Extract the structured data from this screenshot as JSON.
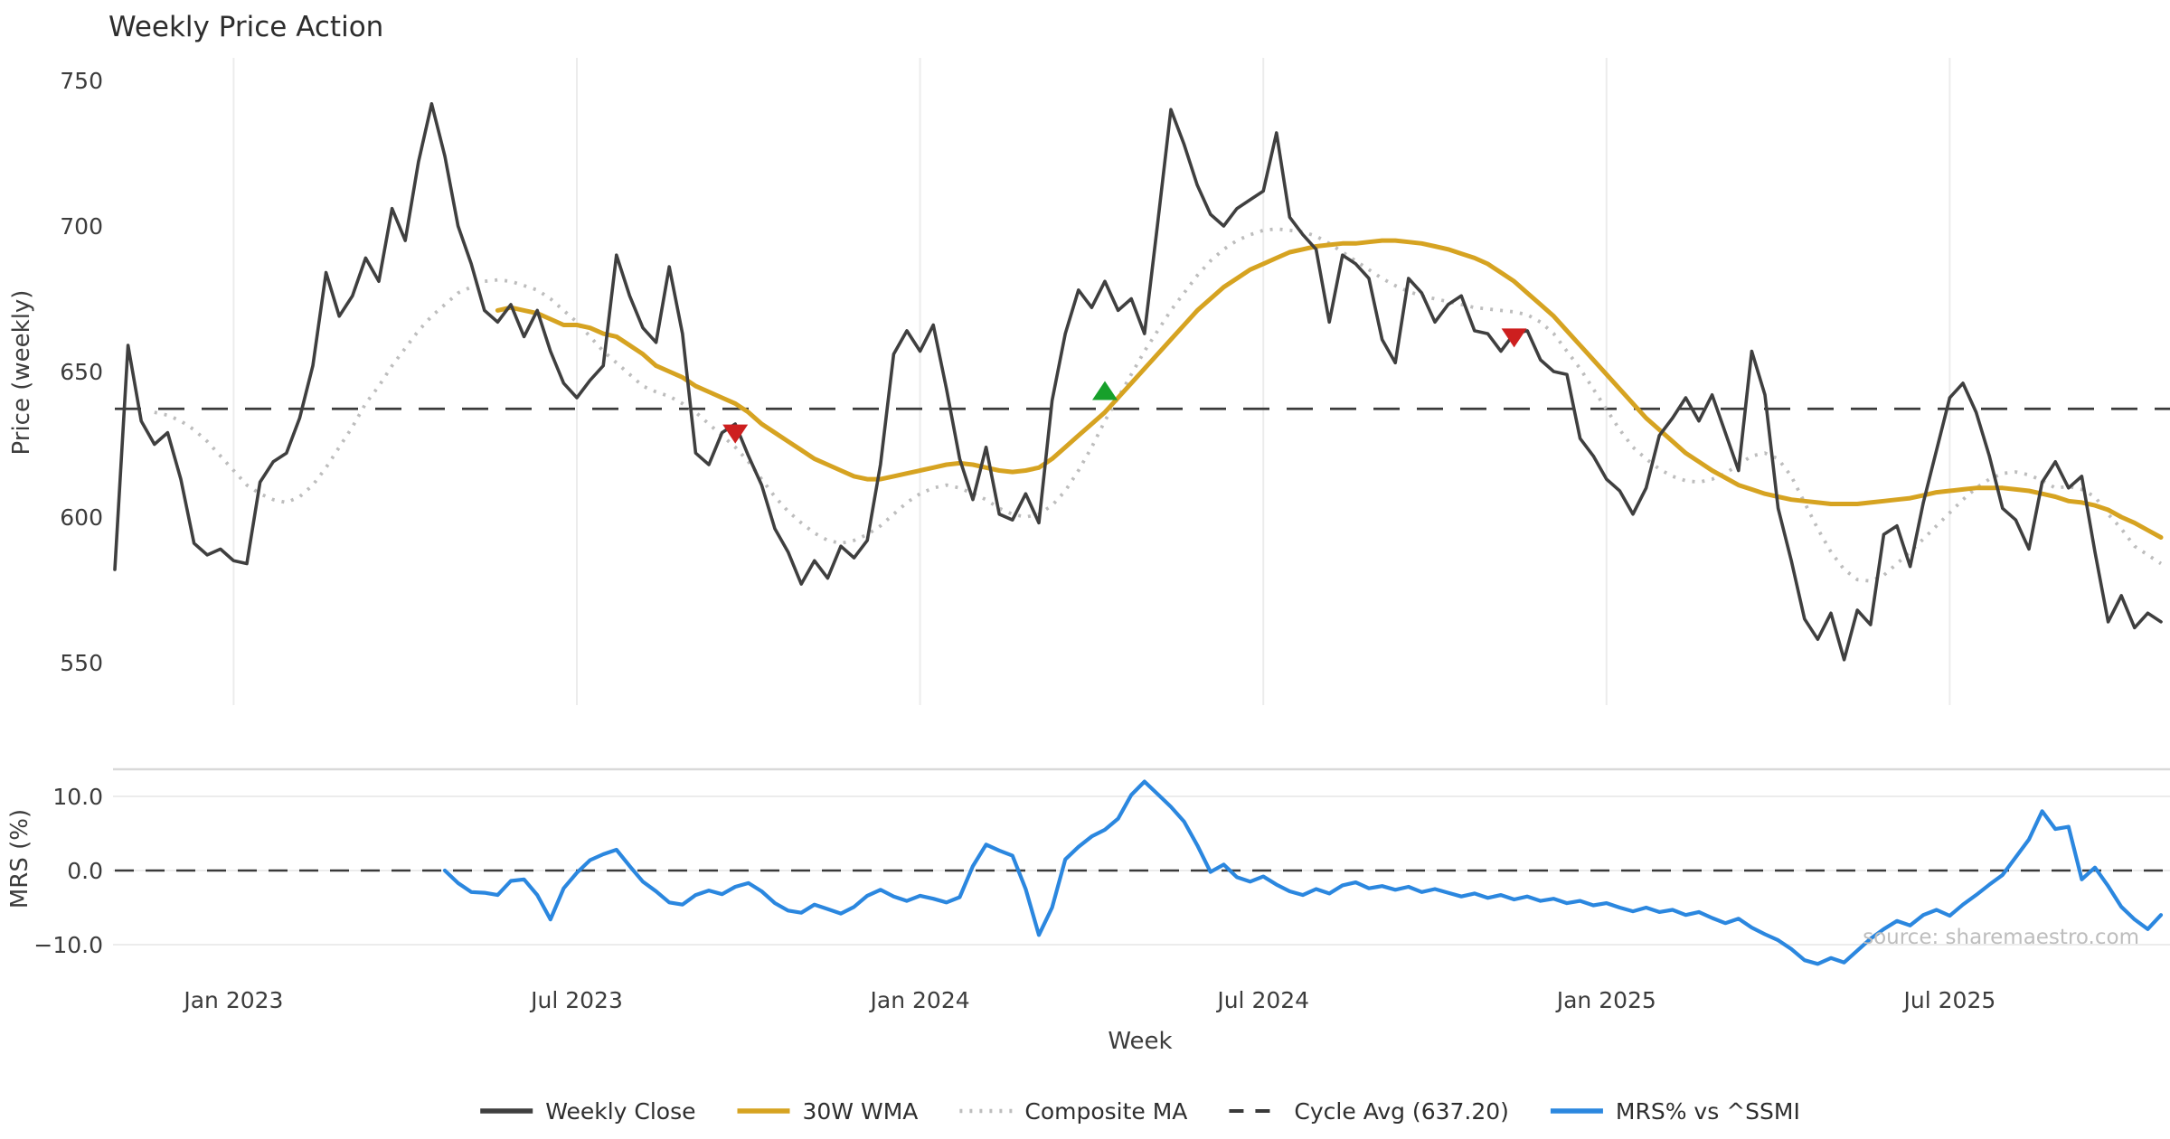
{
  "title": "Weekly Price Action",
  "source_note": "source: sharemaestro.com",
  "colors": {
    "close": "#3f3f3f",
    "wma": "#d6a321",
    "composite": "#bdbdbd",
    "cycle": "#3a3a3a",
    "mrs": "#2b87df",
    "buy": "#17a02b",
    "sell": "#cd1f1f",
    "grid": "#ececec",
    "spine": "#d9d9d9",
    "text": "#3c3c3c",
    "source_text": "#bdbdbd"
  },
  "legend": {
    "items": [
      {
        "label": "Weekly Close",
        "style": "solid",
        "color": "#3f3f3f"
      },
      {
        "label": "30W WMA",
        "style": "solid",
        "color": "#d6a321"
      },
      {
        "label": "Composite MA",
        "style": "dotted",
        "color": "#bdbdbd"
      },
      {
        "label": "Cycle Avg (637.20)",
        "style": "dashed",
        "color": "#3a3a3a"
      },
      {
        "label": "MRS% vs ^SSMI",
        "style": "solid",
        "color": "#2b87df"
      }
    ]
  },
  "chart_data": {
    "type": "line",
    "title": "Weekly Price Action",
    "xlabel": "Week",
    "x": {
      "n_weeks": 156,
      "tick_weeks": [
        9,
        35,
        61,
        87,
        113,
        139
      ],
      "tick_labels": [
        "Jan 2023",
        "Jul 2023",
        "Jan 2024",
        "Jul 2024",
        "Jan 2025",
        "Jul 2025"
      ]
    },
    "panels": [
      {
        "name": "price",
        "ylabel": "Price (weekly)",
        "ylim": [
          541,
          755
        ],
        "yticks": [
          750,
          700,
          650,
          600,
          550
        ],
        "ytick_labels": [
          "750",
          "700",
          "650",
          "600",
          "550"
        ],
        "cycle_avg": 637.2,
        "series": [
          {
            "name": "Weekly Close",
            "values": [
              582,
              659,
              633,
              625,
              629,
              613,
              591,
              587,
              589,
              585,
              584,
              612,
              619,
              622,
              634,
              652,
              684,
              669,
              676,
              689,
              681,
              706,
              695,
              722,
              742,
              724,
              700,
              687,
              671,
              667,
              673,
              662,
              671,
              657,
              646,
              641,
              647,
              652,
              690,
              676,
              665,
              660,
              686,
              663,
              622,
              618,
              629,
              632,
              621,
              611,
              596,
              588,
              577,
              585,
              579,
              590,
              586,
              592,
              618,
              656,
              664,
              657,
              666,
              644,
              620,
              606,
              624,
              601,
              599,
              608,
              598,
              640,
              663,
              678,
              672,
              681,
              671,
              675,
              663,
              701,
              740,
              728,
              714,
              704,
              700,
              706,
              709,
              712,
              732,
              703,
              697,
              692,
              667,
              690,
              687,
              682,
              661,
              653,
              682,
              677,
              667,
              673,
              676,
              664,
              663,
              657,
              663,
              664,
              654,
              650,
              649,
              627,
              621,
              613,
              609,
              601,
              610,
              628,
              634,
              641,
              633,
              642,
              629,
              616,
              657,
              642,
              603,
              585,
              565,
              558,
              567,
              551,
              568,
              563,
              594,
              597,
              583,
              605,
              623,
              641,
              646,
              636,
              621,
              603,
              599,
              589,
              612,
              619,
              610,
              614,
              588,
              564,
              573,
              562,
              567,
              564
            ]
          },
          {
            "name": "30W WMA",
            "values": [
              null,
              null,
              null,
              null,
              null,
              null,
              null,
              null,
              null,
              null,
              null,
              null,
              null,
              null,
              null,
              null,
              null,
              null,
              null,
              null,
              null,
              null,
              null,
              null,
              null,
              null,
              null,
              null,
              null,
              671,
              672,
              671,
              670,
              668,
              666,
              666,
              665,
              663,
              662,
              659,
              656,
              652,
              650,
              648,
              645,
              643,
              641,
              639,
              636,
              632,
              629,
              626,
              623,
              620,
              618,
              616,
              614,
              613,
              613,
              614,
              615,
              616,
              617,
              618,
              618.5,
              618,
              617,
              616,
              615.5,
              616,
              617,
              620,
              624,
              628,
              632,
              636,
              641,
              646,
              651,
              656,
              661,
              666,
              671,
              675,
              679,
              682,
              685,
              687,
              689,
              691,
              692,
              693,
              693.5,
              694,
              694,
              694.5,
              695,
              695,
              694.5,
              694,
              693,
              692,
              690.5,
              689,
              687,
              684,
              681,
              677,
              673,
              669,
              664,
              659,
              654,
              649,
              644,
              639,
              634,
              630,
              626,
              622,
              619,
              616,
              613.5,
              611,
              609.5,
              608,
              607,
              606,
              605.5,
              605,
              604.5,
              604.5,
              604.5,
              605,
              605.5,
              606,
              606.5,
              607.5,
              608.5,
              609,
              609.5,
              610,
              610,
              610,
              609.5,
              609,
              608,
              607,
              605.5,
              605,
              604,
              602.5,
              600,
              598,
              595.5,
              593
            ]
          },
          {
            "name": "Composite MA",
            "values": [
              null,
              null,
              null,
              636,
              635,
              633,
              630,
              626,
              621,
              616,
              611,
              608,
              606,
              605,
              607,
              611,
              617,
              624,
              631,
              639,
              645,
              652,
              658,
              664,
              669,
              673,
              677,
              679,
              681,
              681.5,
              681,
              679.5,
              678,
              675,
              671,
              667,
              662,
              657,
              653,
              649,
              645,
              643,
              641.5,
              639,
              636,
              632,
              628,
              624,
              619,
              613,
              607,
              602,
              598,
              594.5,
              592,
              591,
              592,
              594,
              597,
              601,
              605,
              608,
              610,
              611,
              610,
              608,
              606,
              603,
              601,
              600,
              601,
              604,
              609,
              616,
              624,
              633,
              641,
              649,
              657,
              664,
              671,
              677,
              683,
              688,
              692,
              695,
              697,
              698.5,
              699,
              698.5,
              698,
              696.5,
              694,
              691,
              688,
              685,
              682,
              679.5,
              677.5,
              676,
              675,
              674,
              673,
              672,
              671.5,
              671,
              670.5,
              669.5,
              667,
              663,
              657,
              651,
              644,
              637,
              630,
              624,
              620,
              616.5,
              614,
              612.5,
              612,
              613,
              615,
              618,
              621,
              622,
              620,
              614,
              605,
              596,
              588,
              582,
              578.5,
              578,
              580,
              584,
              588,
              592.5,
              597,
              601.5,
              606,
              610,
              613,
              615,
              615.5,
              614.5,
              612.5,
              610,
              610.5,
              609.5,
              607,
              601,
              596,
              590,
              587,
              584
            ]
          }
        ],
        "markers": [
          {
            "week": 47,
            "price": 629,
            "type": "sell"
          },
          {
            "week": 75,
            "price": 643,
            "type": "buy"
          },
          {
            "week": 106,
            "price": 662,
            "type": "sell"
          }
        ]
      },
      {
        "name": "mrs",
        "ylabel": "MRS (%)",
        "ylim": [
          -14,
          13.5
        ],
        "yticks": [
          10,
          0,
          -10
        ],
        "ytick_labels": [
          "10.0",
          "0.0",
          "−10.0"
        ],
        "zero_line": 0,
        "series": [
          {
            "name": "MRS% vs ^SSMI",
            "values": [
              null,
              null,
              null,
              null,
              null,
              null,
              null,
              null,
              null,
              null,
              null,
              null,
              null,
              null,
              null,
              null,
              null,
              null,
              null,
              null,
              null,
              null,
              null,
              null,
              null,
              0.0,
              -1.7,
              -2.9,
              -3.0,
              -3.3,
              -1.4,
              -1.2,
              -3.3,
              -6.6,
              -2.4,
              -0.3,
              1.4,
              2.2,
              2.8,
              0.6,
              -1.5,
              -2.8,
              -4.3,
              -4.6,
              -3.3,
              -2.7,
              -3.2,
              -2.2,
              -1.7,
              -2.8,
              -4.4,
              -5.4,
              -5.7,
              -4.6,
              -5.2,
              -5.8,
              -4.9,
              -3.4,
              -2.6,
              -3.5,
              -4.1,
              -3.4,
              -3.8,
              -4.3,
              -3.6,
              0.6,
              3.5,
              2.7,
              2.0,
              -2.5,
              -8.7,
              -5.0,
              1.5,
              3.2,
              4.6,
              5.5,
              7.0,
              10.2,
              12.0,
              10.3,
              8.6,
              6.6,
              3.4,
              -0.2,
              0.8,
              -0.9,
              -1.5,
              -0.8,
              -1.9,
              -2.8,
              -3.3,
              -2.5,
              -3.1,
              -2.0,
              -1.6,
              -2.4,
              -2.1,
              -2.6,
              -2.2,
              -2.9,
              -2.5,
              -3.0,
              -3.5,
              -3.1,
              -3.7,
              -3.3,
              -3.9,
              -3.5,
              -4.1,
              -3.8,
              -4.4,
              -4.1,
              -4.7,
              -4.4,
              -5.0,
              -5.5,
              -5.0,
              -5.6,
              -5.3,
              -6.0,
              -5.6,
              -6.4,
              -7.1,
              -6.5,
              -7.7,
              -8.6,
              -9.4,
              -10.6,
              -12.1,
              -12.6,
              -11.8,
              -12.4,
              -10.8,
              -9.2,
              -7.9,
              -6.8,
              -7.4,
              -6.0,
              -5.3,
              -6.1,
              -4.6,
              -3.3,
              -1.9,
              -0.6,
              1.8,
              4.2,
              8.0,
              5.6,
              5.9,
              -1.2,
              0.4,
              -2.1,
              -4.9,
              -6.6,
              -7.9,
              -6.0
            ]
          }
        ]
      }
    ]
  }
}
